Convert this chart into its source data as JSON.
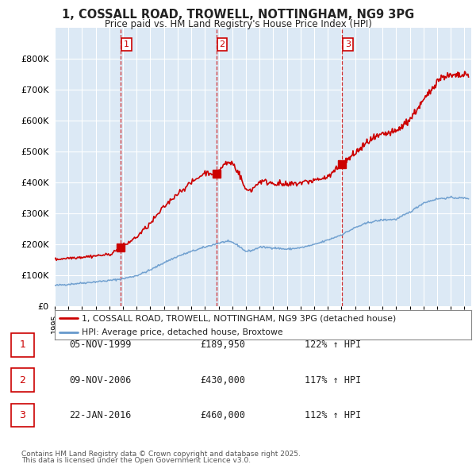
{
  "title_line1": "1, COSSALL ROAD, TROWELL, NOTTINGHAM, NG9 3PG",
  "title_line2": "Price paid vs. HM Land Registry's House Price Index (HPI)",
  "legend_property": "1, COSSALL ROAD, TROWELL, NOTTINGHAM, NG9 3PG (detached house)",
  "legend_hpi": "HPI: Average price, detached house, Broxtowe",
  "transactions": [
    {
      "num": 1,
      "date": "05-NOV-1999",
      "price": 189950,
      "price_str": "£189,950",
      "hpi_pct": "122% ↑ HPI",
      "year": 1999.85
    },
    {
      "num": 2,
      "date": "09-NOV-2006",
      "price": 430000,
      "price_str": "£430,000",
      "hpi_pct": "117% ↑ HPI",
      "year": 2006.85
    },
    {
      "num": 3,
      "date": "22-JAN-2016",
      "price": 460000,
      "price_str": "£460,000",
      "hpi_pct": "112% ↑ HPI",
      "year": 2016.05
    }
  ],
  "footnote_line1": "Contains HM Land Registry data © Crown copyright and database right 2025.",
  "footnote_line2": "This data is licensed under the Open Government Licence v3.0.",
  "property_color": "#cc0000",
  "hpi_color": "#6699cc",
  "chart_bg": "#dce9f5",
  "background_color": "#ffffff",
  "ylim": [
    0,
    900000
  ],
  "xlim_start": 1995.0,
  "xlim_end": 2025.5,
  "hpi_anchors": [
    [
      1995.0,
      68000
    ],
    [
      1996.0,
      72000
    ],
    [
      1997.0,
      76000
    ],
    [
      1998.0,
      80000
    ],
    [
      1999.0,
      84000
    ],
    [
      2000.0,
      90000
    ],
    [
      2001.0,
      100000
    ],
    [
      2002.0,
      118000
    ],
    [
      2003.0,
      142000
    ],
    [
      2004.0,
      162000
    ],
    [
      2005.0,
      178000
    ],
    [
      2006.0,
      192000
    ],
    [
      2007.0,
      205000
    ],
    [
      2007.5,
      210000
    ],
    [
      2008.0,
      208000
    ],
    [
      2008.5,
      195000
    ],
    [
      2009.0,
      178000
    ],
    [
      2009.5,
      182000
    ],
    [
      2010.0,
      192000
    ],
    [
      2011.0,
      190000
    ],
    [
      2012.0,
      185000
    ],
    [
      2013.0,
      190000
    ],
    [
      2014.0,
      200000
    ],
    [
      2015.0,
      215000
    ],
    [
      2016.0,
      232000
    ],
    [
      2017.0,
      255000
    ],
    [
      2018.0,
      272000
    ],
    [
      2019.0,
      280000
    ],
    [
      2020.0,
      282000
    ],
    [
      2021.0,
      305000
    ],
    [
      2022.0,
      335000
    ],
    [
      2023.0,
      348000
    ],
    [
      2024.0,
      352000
    ],
    [
      2025.3,
      350000
    ]
  ],
  "prop_anchors_seg1": [
    [
      1995.0,
      152000
    ],
    [
      1996.0,
      157000
    ],
    [
      1997.0,
      160000
    ],
    [
      1998.0,
      164000
    ],
    [
      1999.0,
      168000
    ],
    [
      1999.85,
      189950
    ]
  ],
  "prop_anchors_seg2": [
    [
      1999.85,
      189950
    ],
    [
      2001.0,
      225000
    ],
    [
      2002.0,
      268000
    ],
    [
      2003.0,
      322000
    ],
    [
      2004.0,
      366000
    ],
    [
      2005.0,
      400000
    ],
    [
      2006.0,
      433000
    ],
    [
      2006.85,
      430000
    ]
  ],
  "prop_anchors_seg3": [
    [
      2006.85,
      430000
    ],
    [
      2007.5,
      463000
    ],
    [
      2008.0,
      465000
    ],
    [
      2008.5,
      430000
    ],
    [
      2009.0,
      375000
    ],
    [
      2009.5,
      380000
    ],
    [
      2010.0,
      405000
    ],
    [
      2011.0,
      400000
    ],
    [
      2012.0,
      392000
    ],
    [
      2013.0,
      400000
    ],
    [
      2014.0,
      408000
    ],
    [
      2015.0,
      418000
    ],
    [
      2016.05,
      460000
    ]
  ],
  "prop_anchors_seg4": [
    [
      2016.05,
      460000
    ],
    [
      2017.0,
      495000
    ],
    [
      2018.0,
      535000
    ],
    [
      2019.0,
      555000
    ],
    [
      2020.0,
      565000
    ],
    [
      2021.0,
      605000
    ],
    [
      2022.0,
      665000
    ],
    [
      2022.5,
      695000
    ],
    [
      2023.0,
      730000
    ],
    [
      2023.5,
      745000
    ],
    [
      2024.0,
      745000
    ],
    [
      2024.5,
      745000
    ],
    [
      2025.3,
      748000
    ]
  ]
}
